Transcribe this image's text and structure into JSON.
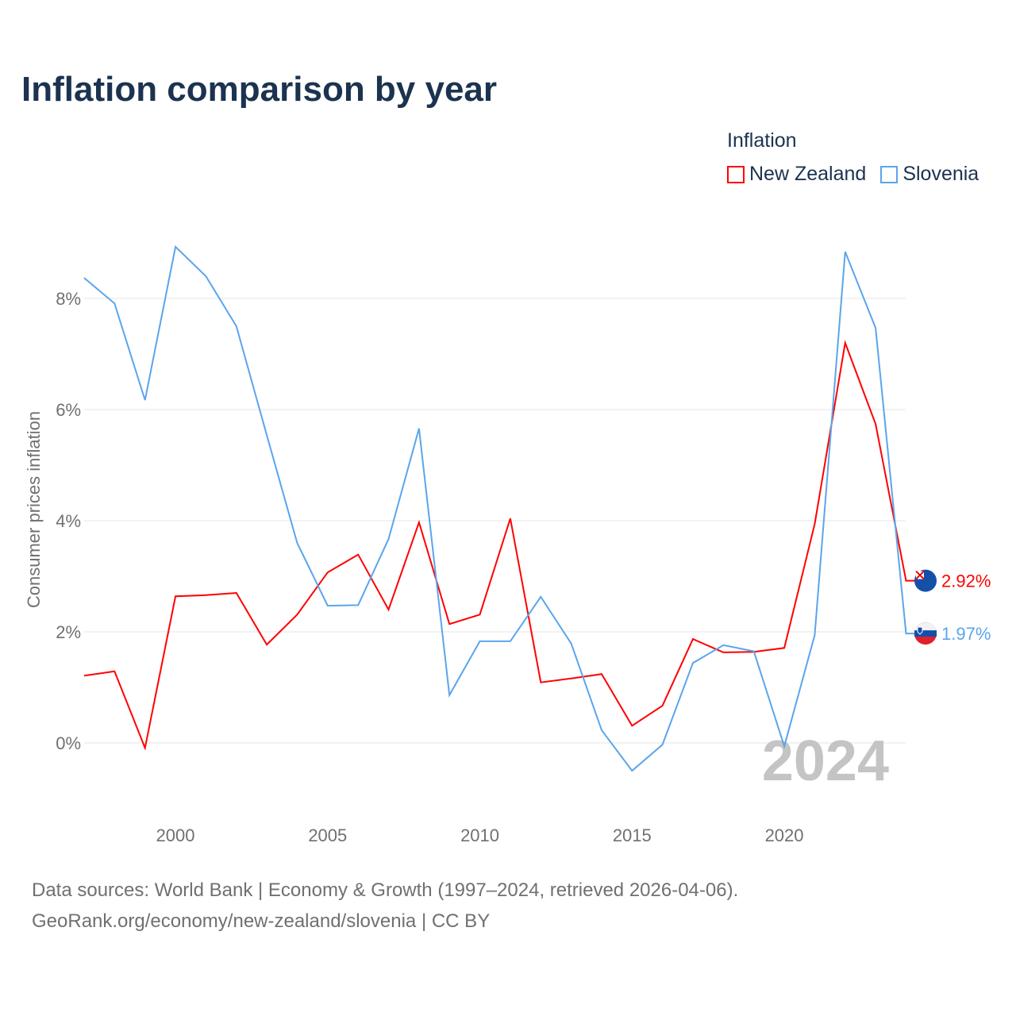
{
  "title": "Inflation comparison by year",
  "legend": {
    "title": "Inflation",
    "items": [
      {
        "label": "New Zealand",
        "color": "#ff0000"
      },
      {
        "label": "Slovenia",
        "color": "#5aa5ec"
      }
    ]
  },
  "year_watermark": "2024",
  "source_line1": "Data sources: World Bank | Economy & Growth (1997–2024, retrieved 2026-04-06).",
  "source_line2": "GeoRank.org/economy/new-zealand/slovenia | CC BY",
  "chart_data": {
    "type": "line",
    "title": "Inflation comparison by year",
    "xlabel": "",
    "ylabel": "Consumer prices inflation",
    "x": [
      1997,
      1998,
      1999,
      2000,
      2001,
      2002,
      2003,
      2004,
      2005,
      2006,
      2007,
      2008,
      2009,
      2010,
      2011,
      2012,
      2013,
      2014,
      2015,
      2016,
      2017,
      2018,
      2019,
      2020,
      2021,
      2022,
      2023,
      2024
    ],
    "xticks": [
      2000,
      2005,
      2010,
      2015,
      2020
    ],
    "yticks": [
      0,
      2,
      4,
      6,
      8
    ],
    "ytick_labels": [
      "0%",
      "2%",
      "4%",
      "6%",
      "8%"
    ],
    "xlim": [
      1997,
      2024
    ],
    "ylim": [
      -1.8,
      9.5
    ],
    "grid": true,
    "legend_position": "top-right",
    "series": [
      {
        "name": "New Zealand",
        "color": "#ff0000",
        "end_label": "2.92%",
        "values": [
          1.21,
          1.29,
          -0.09,
          2.64,
          2.66,
          2.7,
          1.77,
          2.31,
          3.07,
          3.39,
          2.4,
          3.97,
          2.14,
          2.31,
          4.04,
          1.09,
          1.16,
          1.24,
          0.31,
          0.67,
          1.87,
          1.63,
          1.64,
          1.71,
          3.94,
          7.2,
          5.74,
          2.92
        ]
      },
      {
        "name": "Slovenia",
        "color": "#5aa5ec",
        "end_label": "1.97%",
        "values": [
          8.37,
          7.91,
          6.17,
          8.93,
          8.4,
          7.5,
          5.54,
          3.6,
          2.47,
          2.48,
          3.67,
          5.66,
          0.86,
          1.83,
          1.83,
          2.63,
          1.79,
          0.23,
          -0.5,
          -0.03,
          1.44,
          1.76,
          1.65,
          -0.06,
          1.94,
          8.84,
          7.47,
          1.97
        ]
      }
    ]
  }
}
